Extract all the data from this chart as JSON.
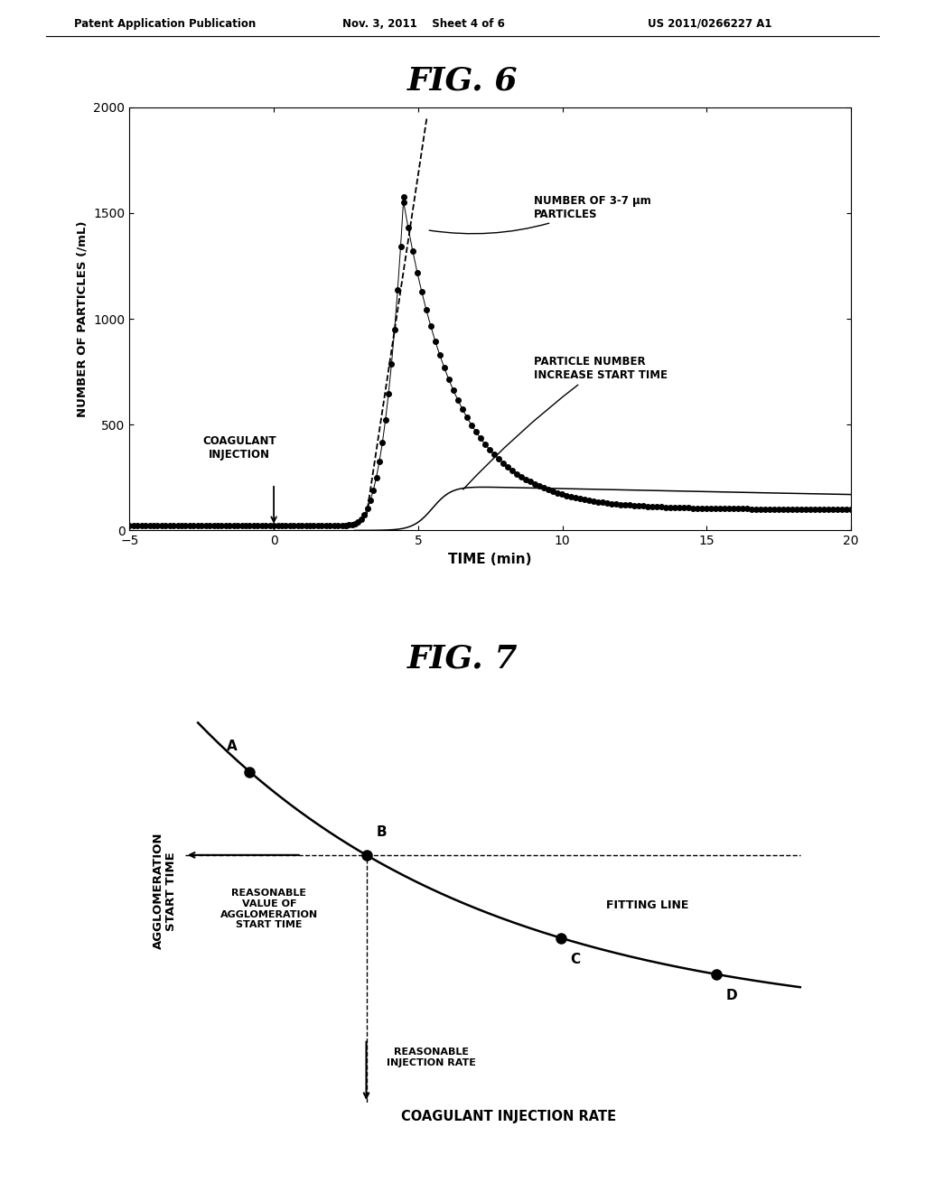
{
  "header_left": "Patent Application Publication",
  "header_mid": "Nov. 3, 2011    Sheet 4 of 6",
  "header_right": "US 2011/0266227 A1",
  "fig6_title": "FIG. 6",
  "fig6_xlabel": "TIME (min)",
  "fig6_ylabel": "NUMBER OF PARTICLES (/mL)",
  "fig6_xlim": [
    -5,
    20
  ],
  "fig6_ylim": [
    0,
    2000
  ],
  "fig6_xticks": [
    -5,
    0,
    5,
    10,
    15,
    20
  ],
  "fig6_yticks": [
    0,
    500,
    1000,
    1500,
    2000
  ],
  "fig7_title": "FIG. 7",
  "fig7_xlabel": "COAGULANT INJECTION RATE",
  "fig7_ylabel": "AGGLOMERATION\nSTART TIME",
  "annotation1": "NUMBER OF 3-7 μm\nPARTICLES",
  "annotation2": "PARTICLE NUMBER\nINCREASE START TIME",
  "annotation3": "COAGULANT\nINJECTION",
  "fitting_line": "FITTING LINE",
  "reasonable_val": "REASONABLE\nVALUE OF\nAGGLOMERATION\nSTART TIME",
  "reasonable_rate": "REASONABLE\nINJECTION RATE",
  "background_color": "#ffffff"
}
